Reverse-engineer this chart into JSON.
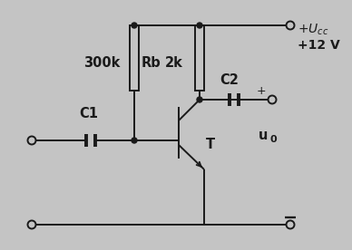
{
  "bg_color": "#c4c4c4",
  "line_color": "#1a1a1a",
  "lw": 1.4,
  "Rb_label": "Rb",
  "Rb_val": "300k",
  "Rc_val": "2k",
  "C1_label": "C1",
  "C2_label": "C2",
  "T_label": "T",
  "u0_label": "u",
  "Ucc_line1": "+U",
  "Ucc_line2": "+12 V",
  "fig_w": 3.88,
  "fig_h": 2.76,
  "dpi": 100
}
